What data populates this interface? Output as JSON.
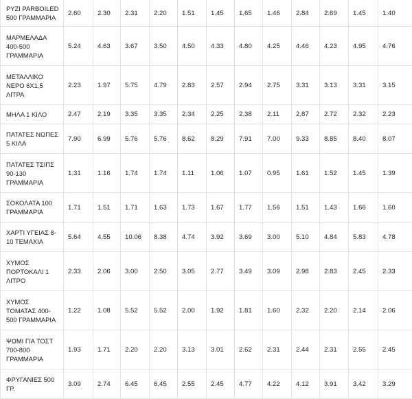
{
  "table": {
    "rows": [
      {
        "product": "ΡΥΖΙ PARBOILED 500 ΓΡΑΜΜΑΡΙΑ",
        "prices": [
          "2.60",
          "2.30",
          "2.31",
          "2.20",
          "1.51",
          "1.45",
          "1.65",
          "1.46",
          "2.84",
          "2.69",
          "1.45",
          "1.40"
        ]
      },
      {
        "product": "ΜΑΡΜΕΛΑΔΑ 400-500 ΓΡΑΜΜΑΡΙΑ",
        "prices": [
          "5.24",
          "4.63",
          "3.67",
          "3.50",
          "4.50",
          "4.33",
          "4.80",
          "4.25",
          "4.46",
          "4.23",
          "4.95",
          "4.76"
        ]
      },
      {
        "product": "ΜΕΤΑΛΛΙΚΟ ΝΕΡΟ 6Χ1,5 ΛΙΤΡΑ",
        "prices": [
          "2.23",
          "1.97",
          "5.75",
          "4.79",
          "2.83",
          "2.57",
          "2.94",
          "2.75",
          "3.31",
          "3.13",
          "3.31",
          "3.15"
        ]
      },
      {
        "product": "ΜΗΛΑ 1 ΚΙΛΟ",
        "prices": [
          "2.47",
          "2.19",
          "3.35",
          "3.35",
          "2.34",
          "2.25",
          "2.38",
          "2.11",
          "2.87",
          "2.72",
          "2.32",
          "2.23"
        ]
      },
      {
        "product": "ΠΑΤΑΤΕΣ ΝΩΠΕΣ 5 ΚΙΛΑ",
        "prices": [
          "7.90",
          "6.99",
          "5.76",
          "5.76",
          "8.62",
          "8.29",
          "7.91",
          "7.00",
          "9.33",
          "8.85",
          "8.40",
          "8.07"
        ]
      },
      {
        "product": "ΠΑΤΑΤΕΣ ΤΣΙΠΣ 90-130 ΓΡΑΜΜΑΡΙΑ",
        "prices": [
          "1.31",
          "1.16",
          "1.74",
          "1.74",
          "1.11",
          "1.06",
          "1.07",
          "0.95",
          "1.61",
          "1.52",
          "1.45",
          "1.39"
        ]
      },
      {
        "product": "ΣΟΚΟΛΑΤΑ 100 ΓΡΑΜΜΑΡΙΑ",
        "prices": [
          "1.71",
          "1.51",
          "1.71",
          "1.63",
          "1.73",
          "1.67",
          "1.77",
          "1.56",
          "1.51",
          "1.43",
          "1.66",
          "1.60"
        ]
      },
      {
        "product": "ΧΑΡΤΙ ΥΓΕΙΑΣ 8-10 ΤΕΜΑΧΙΑ",
        "prices": [
          "5.64",
          "4.55",
          "10.06",
          "8.38",
          "4.74",
          "3.92",
          "3.69",
          "3.00",
          "5.10",
          "4.84",
          "5.83",
          "4.78"
        ]
      },
      {
        "product": "ΧΥΜΟΣ ΠΟΡΤΟΚΑΛΙ 1 ΛΙΤΡΟ",
        "prices": [
          "2.33",
          "2.06",
          "3.00",
          "2.50",
          "3.05",
          "2.77",
          "3.49",
          "3.09",
          "2.98",
          "2.83",
          "2.45",
          "2.33"
        ]
      },
      {
        "product": "ΧΥΜΟΣ ΤΟΜΑΤΑΣ 400-500 ΓΡΑΜΜΑΡΙΑ",
        "prices": [
          "1.22",
          "1.08",
          "5.52",
          "5.52",
          "2.00",
          "1.92",
          "1.81",
          "1.60",
          "2.32",
          "2.20",
          "2.14",
          "2.06"
        ]
      },
      {
        "product": "ΨΩΜΙ ΓΙΑ ΤΟΣΤ 700-800 ΓΡΑΜΜΑΡΙΑ",
        "prices": [
          "1.93",
          "1.71",
          "2.20",
          "2.20",
          "3.13",
          "3.01",
          "2.62",
          "2.31",
          "2.44",
          "2.31",
          "2.55",
          "2.45"
        ]
      },
      {
        "product": "ΦΡΥΓΑΝΙΕΣ 500 ΓΡ.",
        "prices": [
          "3.09",
          "2.74",
          "6.45",
          "6.45",
          "2.55",
          "2.45",
          "4.77",
          "4.22",
          "4.12",
          "3.91",
          "3.42",
          "3.29"
        ]
      }
    ]
  }
}
